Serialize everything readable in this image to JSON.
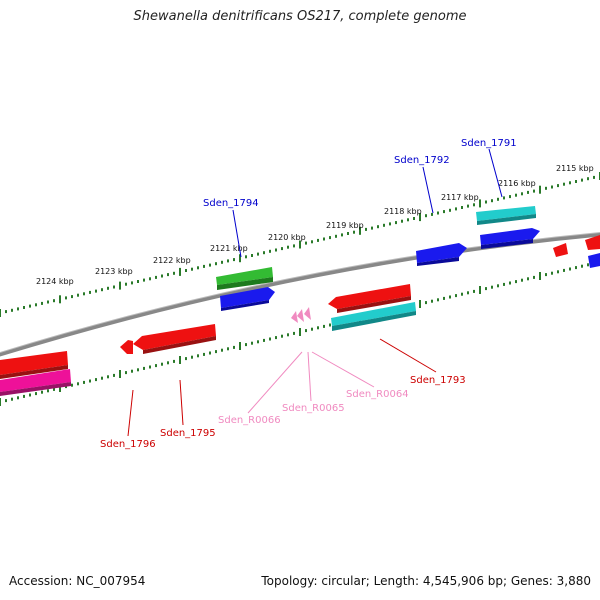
{
  "title": "Shewanella denitrificans OS217, complete genome",
  "footer": {
    "accession": "Accession: NC_007954",
    "summary": "Topology: circular; Length: 4,545,906 bp; Genes: 3,880"
  },
  "colors": {
    "red": "#ee1111",
    "blue": "#1a1aee",
    "cyan": "#22cccc",
    "green": "#33bb33",
    "magenta": "#ee1199",
    "pink": "#f08ac0",
    "backbone": "#888888",
    "ticks": "#2a7a2a",
    "label_red": "#cc0000",
    "label_blue": "#0000cc",
    "label_pink": "#f08ac0"
  },
  "scale_labels": [
    "2115 kbp",
    "2116 kbp",
    "2117 kbp",
    "2118 kbp",
    "2119 kbp",
    "2120 kbp",
    "2121 kbp",
    "2122 kbp",
    "2123 kbp",
    "2124 kbp"
  ],
  "gene_labels": {
    "sden_1791": "Sden_1791",
    "sden_1792": "Sden_1792",
    "sden_1793": "Sden_1793",
    "sden_1794": "Sden_1794",
    "sden_1795": "Sden_1795",
    "sden_1796": "Sden_1796",
    "sden_r0064": "Sden_R0064",
    "sden_r0065": "Sden_R0065",
    "sden_r0066": "Sden_R0066"
  }
}
